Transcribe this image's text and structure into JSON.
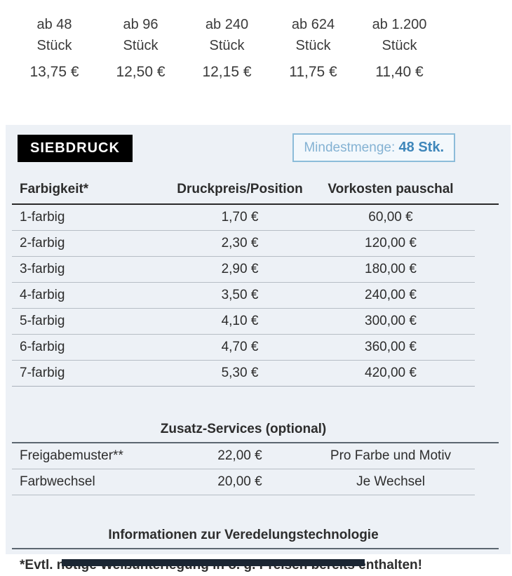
{
  "quantity_tiers": [
    {
      "qty": "ab 48",
      "unit": "Stück",
      "price": "13,75 €"
    },
    {
      "qty": "ab 96",
      "unit": "Stück",
      "price": "12,50 €"
    },
    {
      "qty": "ab 240",
      "unit": "Stück",
      "price": "12,15 €"
    },
    {
      "qty": "ab 624",
      "unit": "Stück",
      "price": "11,75 €"
    },
    {
      "qty": "ab 1.200",
      "unit": "Stück",
      "price": "11,40 €"
    }
  ],
  "panel": {
    "badge": "SIEBDRUCK",
    "min_qty_label": "Mindestmenge:",
    "min_qty_value": "48 Stk.",
    "table": {
      "headers": [
        "Farbigkeit*",
        "Druckpreis/Position",
        "Vorkosten pauschal"
      ],
      "rows": [
        {
          "label": "1-farbig",
          "price": "1,70 €",
          "setup": "60,00 €"
        },
        {
          "label": "2-farbig",
          "price": "2,30 €",
          "setup": "120,00 €"
        },
        {
          "label": "3-farbig",
          "price": "2,90 €",
          "setup": "180,00 €"
        },
        {
          "label": "4-farbig",
          "price": "3,50 €",
          "setup": "240,00 €"
        },
        {
          "label": "5-farbig",
          "price": "4,10 €",
          "setup": "300,00 €"
        },
        {
          "label": "6-farbig",
          "price": "4,70 €",
          "setup": "360,00 €"
        },
        {
          "label": "7-farbig",
          "price": "5,30 €",
          "setup": "420,00 €"
        }
      ]
    },
    "services": {
      "title": "Zusatz-Services (optional)",
      "rows": [
        {
          "label": "Freigabemuster**",
          "price": "22,00 €",
          "note": "Pro Farbe und Motiv"
        },
        {
          "label": "Farbwechsel",
          "price": "20,00 €",
          "note": "Je Wechsel"
        }
      ]
    },
    "info_link": "Informationen zur Veredelungstechnologie",
    "footnote": "*Evtl. nötige Weißunterlegung in o. g. Preisen bereits enthalten!"
  },
  "colors": {
    "panel_bg": "#edf1f6",
    "badge_bg": "#000000",
    "badge_text": "#ffffff",
    "minqty_border": "#8cbcd9",
    "minqty_label": "#84b2d3",
    "minqty_value": "#3e86ba",
    "text": "#2d2d2d",
    "row_divider": "#b6bdc5",
    "strong_divider": "#5c6670",
    "bottom_bar": "#1b2633"
  }
}
